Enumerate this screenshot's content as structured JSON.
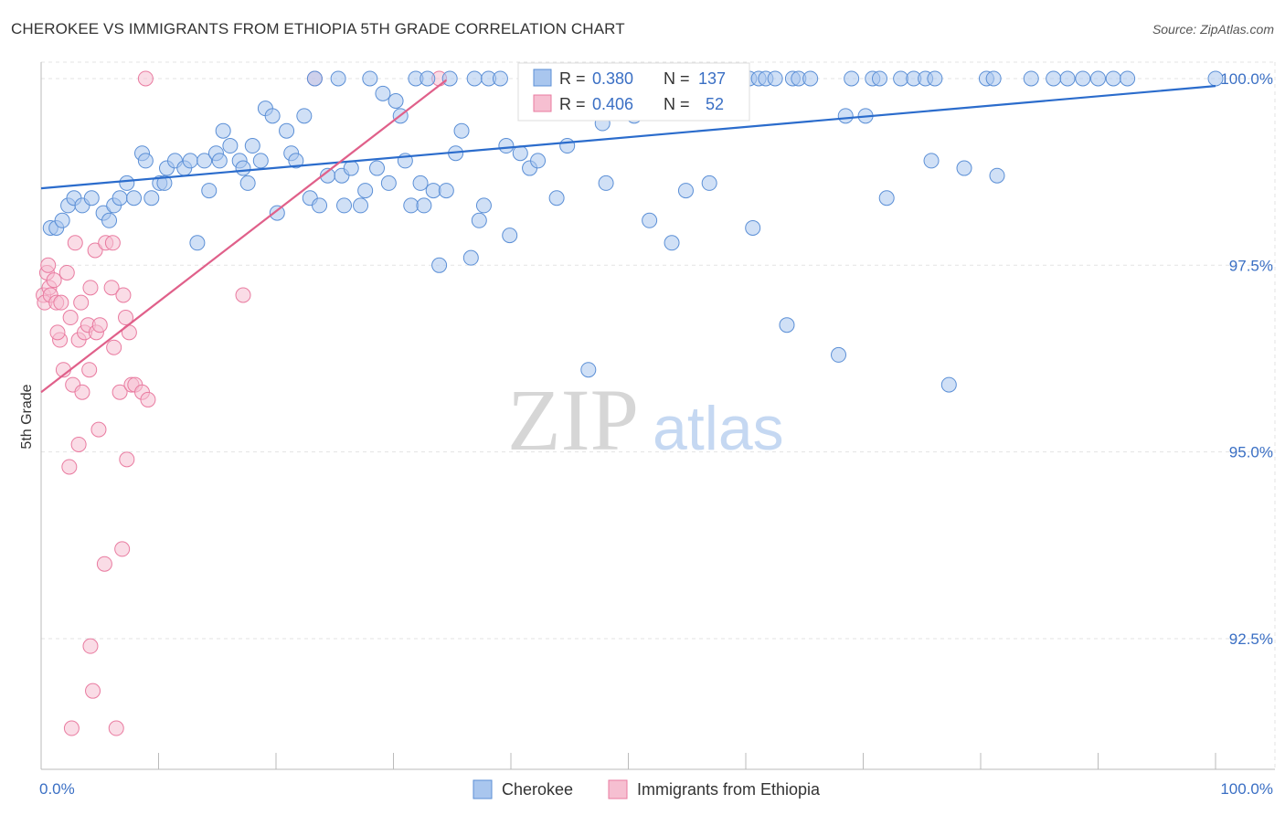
{
  "title": "CHEROKEE VS IMMIGRANTS FROM ETHIOPIA 5TH GRADE CORRELATION CHART",
  "source": "Source: ZipAtlas.com",
  "colors": {
    "blue": "#5b8fd6",
    "blue_fill": "#a9c6ee",
    "pink": "#e97ba0",
    "pink_fill": "#f6bfd1",
    "blue_line": "#2b6ccc",
    "pink_line": "#e0608a",
    "tick_text": "#3a6fc4"
  },
  "legend": {
    "r_label": "R =",
    "n_label": "N =",
    "rows": [
      {
        "series": "Cherokee",
        "r": "0.380",
        "n": "137"
      },
      {
        "series": "Immigrants from Ethiopia",
        "r": "0.406",
        "n": "52"
      }
    ]
  },
  "bottom_legend": [
    "Cherokee",
    "Immigrants from Ethiopia"
  ],
  "watermark": {
    "zip": "ZIP",
    "atlas": "atlas"
  },
  "chart_data": {
    "type": "scatter",
    "ylabel": "5th Grade",
    "xlabel": "",
    "xlim": [
      0,
      100
    ],
    "ylim": [
      90.75,
      100.22
    ],
    "x_tick_labels": [
      "0.0%",
      "100.0%"
    ],
    "y_ticks": [
      92.5,
      95.0,
      97.5,
      100.0
    ],
    "y_tick_labels": [
      "92.5%",
      "95.0%",
      "97.5%",
      "100.0%"
    ],
    "grid": true,
    "series": [
      {
        "name": "Cherokee",
        "r": 0.38,
        "n": 137,
        "trend": {
          "x0": 0,
          "y0": 98.53,
          "x1": 100,
          "y1": 99.9
        },
        "points": [
          [
            0.8,
            98.0
          ],
          [
            1.3,
            98.0
          ],
          [
            1.8,
            98.1
          ],
          [
            2.3,
            98.3
          ],
          [
            2.8,
            98.4
          ],
          [
            3.5,
            98.3
          ],
          [
            4.3,
            98.4
          ],
          [
            5.3,
            98.2
          ],
          [
            5.8,
            98.1
          ],
          [
            6.2,
            98.3
          ],
          [
            6.7,
            98.4
          ],
          [
            7.3,
            98.6
          ],
          [
            7.9,
            98.4
          ],
          [
            8.6,
            99.0
          ],
          [
            8.9,
            98.9
          ],
          [
            9.4,
            98.4
          ],
          [
            10.1,
            98.6
          ],
          [
            10.5,
            98.6
          ],
          [
            10.7,
            98.8
          ],
          [
            11.4,
            98.9
          ],
          [
            12.2,
            98.8
          ],
          [
            12.7,
            98.9
          ],
          [
            13.3,
            97.8
          ],
          [
            13.9,
            98.9
          ],
          [
            14.3,
            98.5
          ],
          [
            14.9,
            99.0
          ],
          [
            15.2,
            98.9
          ],
          [
            15.5,
            99.3
          ],
          [
            16.1,
            99.1
          ],
          [
            16.9,
            98.9
          ],
          [
            17.2,
            98.8
          ],
          [
            17.6,
            98.6
          ],
          [
            18.0,
            99.1
          ],
          [
            18.7,
            98.9
          ],
          [
            19.1,
            99.6
          ],
          [
            19.7,
            99.5
          ],
          [
            20.1,
            98.2
          ],
          [
            20.9,
            99.3
          ],
          [
            21.3,
            99.0
          ],
          [
            21.7,
            98.9
          ],
          [
            22.4,
            99.5
          ],
          [
            22.9,
            98.4
          ],
          [
            23.3,
            100.0
          ],
          [
            23.7,
            98.3
          ],
          [
            24.4,
            98.7
          ],
          [
            25.3,
            100.0
          ],
          [
            25.6,
            98.7
          ],
          [
            25.8,
            98.3
          ],
          [
            26.4,
            98.8
          ],
          [
            27.2,
            98.3
          ],
          [
            27.6,
            98.5
          ],
          [
            28.0,
            100.0
          ],
          [
            28.6,
            98.8
          ],
          [
            29.1,
            99.8
          ],
          [
            29.6,
            98.6
          ],
          [
            30.2,
            99.7
          ],
          [
            30.6,
            99.5
          ],
          [
            31.0,
            98.9
          ],
          [
            31.5,
            98.3
          ],
          [
            31.9,
            100.0
          ],
          [
            32.3,
            98.6
          ],
          [
            32.9,
            100.0
          ],
          [
            32.6,
            98.3
          ],
          [
            33.4,
            98.5
          ],
          [
            33.9,
            97.5
          ],
          [
            34.5,
            98.5
          ],
          [
            34.8,
            100.0
          ],
          [
            35.3,
            99.0
          ],
          [
            35.8,
            99.3
          ],
          [
            36.6,
            97.6
          ],
          [
            36.9,
            100.0
          ],
          [
            37.3,
            98.1
          ],
          [
            37.7,
            98.3
          ],
          [
            38.1,
            100.0
          ],
          [
            39.1,
            100.0
          ],
          [
            39.6,
            99.1
          ],
          [
            39.9,
            97.9
          ],
          [
            40.8,
            99.0
          ],
          [
            41.6,
            98.8
          ],
          [
            42.0,
            100.0
          ],
          [
            42.3,
            98.9
          ],
          [
            43.3,
            100.0
          ],
          [
            43.9,
            98.4
          ],
          [
            44.4,
            100.0
          ],
          [
            44.8,
            99.1
          ],
          [
            46.0,
            100.0
          ],
          [
            46.6,
            96.1
          ],
          [
            47.3,
            100.0
          ],
          [
            47.8,
            99.4
          ],
          [
            48.1,
            98.6
          ],
          [
            48.6,
            100.0
          ],
          [
            49.2,
            100.0
          ],
          [
            50.0,
            100.0
          ],
          [
            50.5,
            99.5
          ],
          [
            51.0,
            100.0
          ],
          [
            51.8,
            98.1
          ],
          [
            52.4,
            100.0
          ],
          [
            53.2,
            100.0
          ],
          [
            53.7,
            97.8
          ],
          [
            54.2,
            100.0
          ],
          [
            54.9,
            98.5
          ],
          [
            55.5,
            100.0
          ],
          [
            56.3,
            100.0
          ],
          [
            56.9,
            98.6
          ],
          [
            57.3,
            100.0
          ],
          [
            58.2,
            100.0
          ],
          [
            58.9,
            100.0
          ],
          [
            59.4,
            100.0
          ],
          [
            60.3,
            100.0
          ],
          [
            60.6,
            98.0
          ],
          [
            61.1,
            100.0
          ],
          [
            61.7,
            100.0
          ],
          [
            62.5,
            100.0
          ],
          [
            63.5,
            96.7
          ],
          [
            64.0,
            100.0
          ],
          [
            64.5,
            100.0
          ],
          [
            65.5,
            100.0
          ],
          [
            67.9,
            96.3
          ],
          [
            68.5,
            99.5
          ],
          [
            69.0,
            100.0
          ],
          [
            70.2,
            99.5
          ],
          [
            70.8,
            100.0
          ],
          [
            71.4,
            100.0
          ],
          [
            72.0,
            98.4
          ],
          [
            73.2,
            100.0
          ],
          [
            74.3,
            100.0
          ],
          [
            75.3,
            100.0
          ],
          [
            75.8,
            98.9
          ],
          [
            76.1,
            100.0
          ],
          [
            77.3,
            95.9
          ],
          [
            78.6,
            98.8
          ],
          [
            80.5,
            100.0
          ],
          [
            81.1,
            100.0
          ],
          [
            81.4,
            98.7
          ],
          [
            84.3,
            100.0
          ],
          [
            86.2,
            100.0
          ],
          [
            87.4,
            100.0
          ],
          [
            88.7,
            100.0
          ],
          [
            90.0,
            100.0
          ],
          [
            91.3,
            100.0
          ],
          [
            92.5,
            100.0
          ],
          [
            100.0,
            100.0
          ]
        ]
      },
      {
        "name": "Immigrants from Ethiopia",
        "r": 0.406,
        "n": 52,
        "trend": {
          "x0": 0,
          "y0": 95.8,
          "x1": 34.5,
          "y1": 99.98
        },
        "points": [
          [
            0.2,
            97.1
          ],
          [
            0.3,
            97.0
          ],
          [
            0.5,
            97.4
          ],
          [
            0.6,
            97.5
          ],
          [
            0.7,
            97.2
          ],
          [
            0.8,
            97.1
          ],
          [
            1.1,
            97.3
          ],
          [
            1.3,
            97.0
          ],
          [
            1.6,
            96.5
          ],
          [
            1.4,
            96.6
          ],
          [
            1.7,
            97.0
          ],
          [
            1.9,
            96.1
          ],
          [
            2.2,
            97.4
          ],
          [
            2.4,
            94.8
          ],
          [
            2.5,
            96.8
          ],
          [
            2.7,
            95.9
          ],
          [
            2.6,
            91.3
          ],
          [
            2.9,
            97.8
          ],
          [
            3.2,
            96.5
          ],
          [
            3.5,
            95.8
          ],
          [
            3.2,
            95.1
          ],
          [
            3.4,
            97.0
          ],
          [
            3.7,
            96.6
          ],
          [
            4.0,
            96.7
          ],
          [
            4.2,
            92.4
          ],
          [
            4.1,
            96.1
          ],
          [
            4.2,
            97.2
          ],
          [
            4.4,
            91.8
          ],
          [
            4.6,
            97.7
          ],
          [
            4.7,
            96.6
          ],
          [
            4.9,
            95.3
          ],
          [
            5.0,
            96.7
          ],
          [
            5.5,
            97.8
          ],
          [
            5.4,
            93.5
          ],
          [
            6.0,
            97.2
          ],
          [
            6.2,
            96.4
          ],
          [
            6.1,
            97.8
          ],
          [
            6.4,
            91.3
          ],
          [
            6.7,
            95.8
          ],
          [
            6.9,
            93.7
          ],
          [
            7.0,
            97.1
          ],
          [
            7.2,
            96.8
          ],
          [
            7.3,
            94.9
          ],
          [
            7.5,
            96.6
          ],
          [
            7.7,
            95.9
          ],
          [
            8.0,
            95.9
          ],
          [
            8.6,
            95.8
          ],
          [
            8.9,
            100.0
          ],
          [
            9.1,
            95.7
          ],
          [
            17.2,
            97.1
          ],
          [
            23.3,
            100.0
          ],
          [
            33.9,
            100.0
          ]
        ]
      }
    ]
  }
}
